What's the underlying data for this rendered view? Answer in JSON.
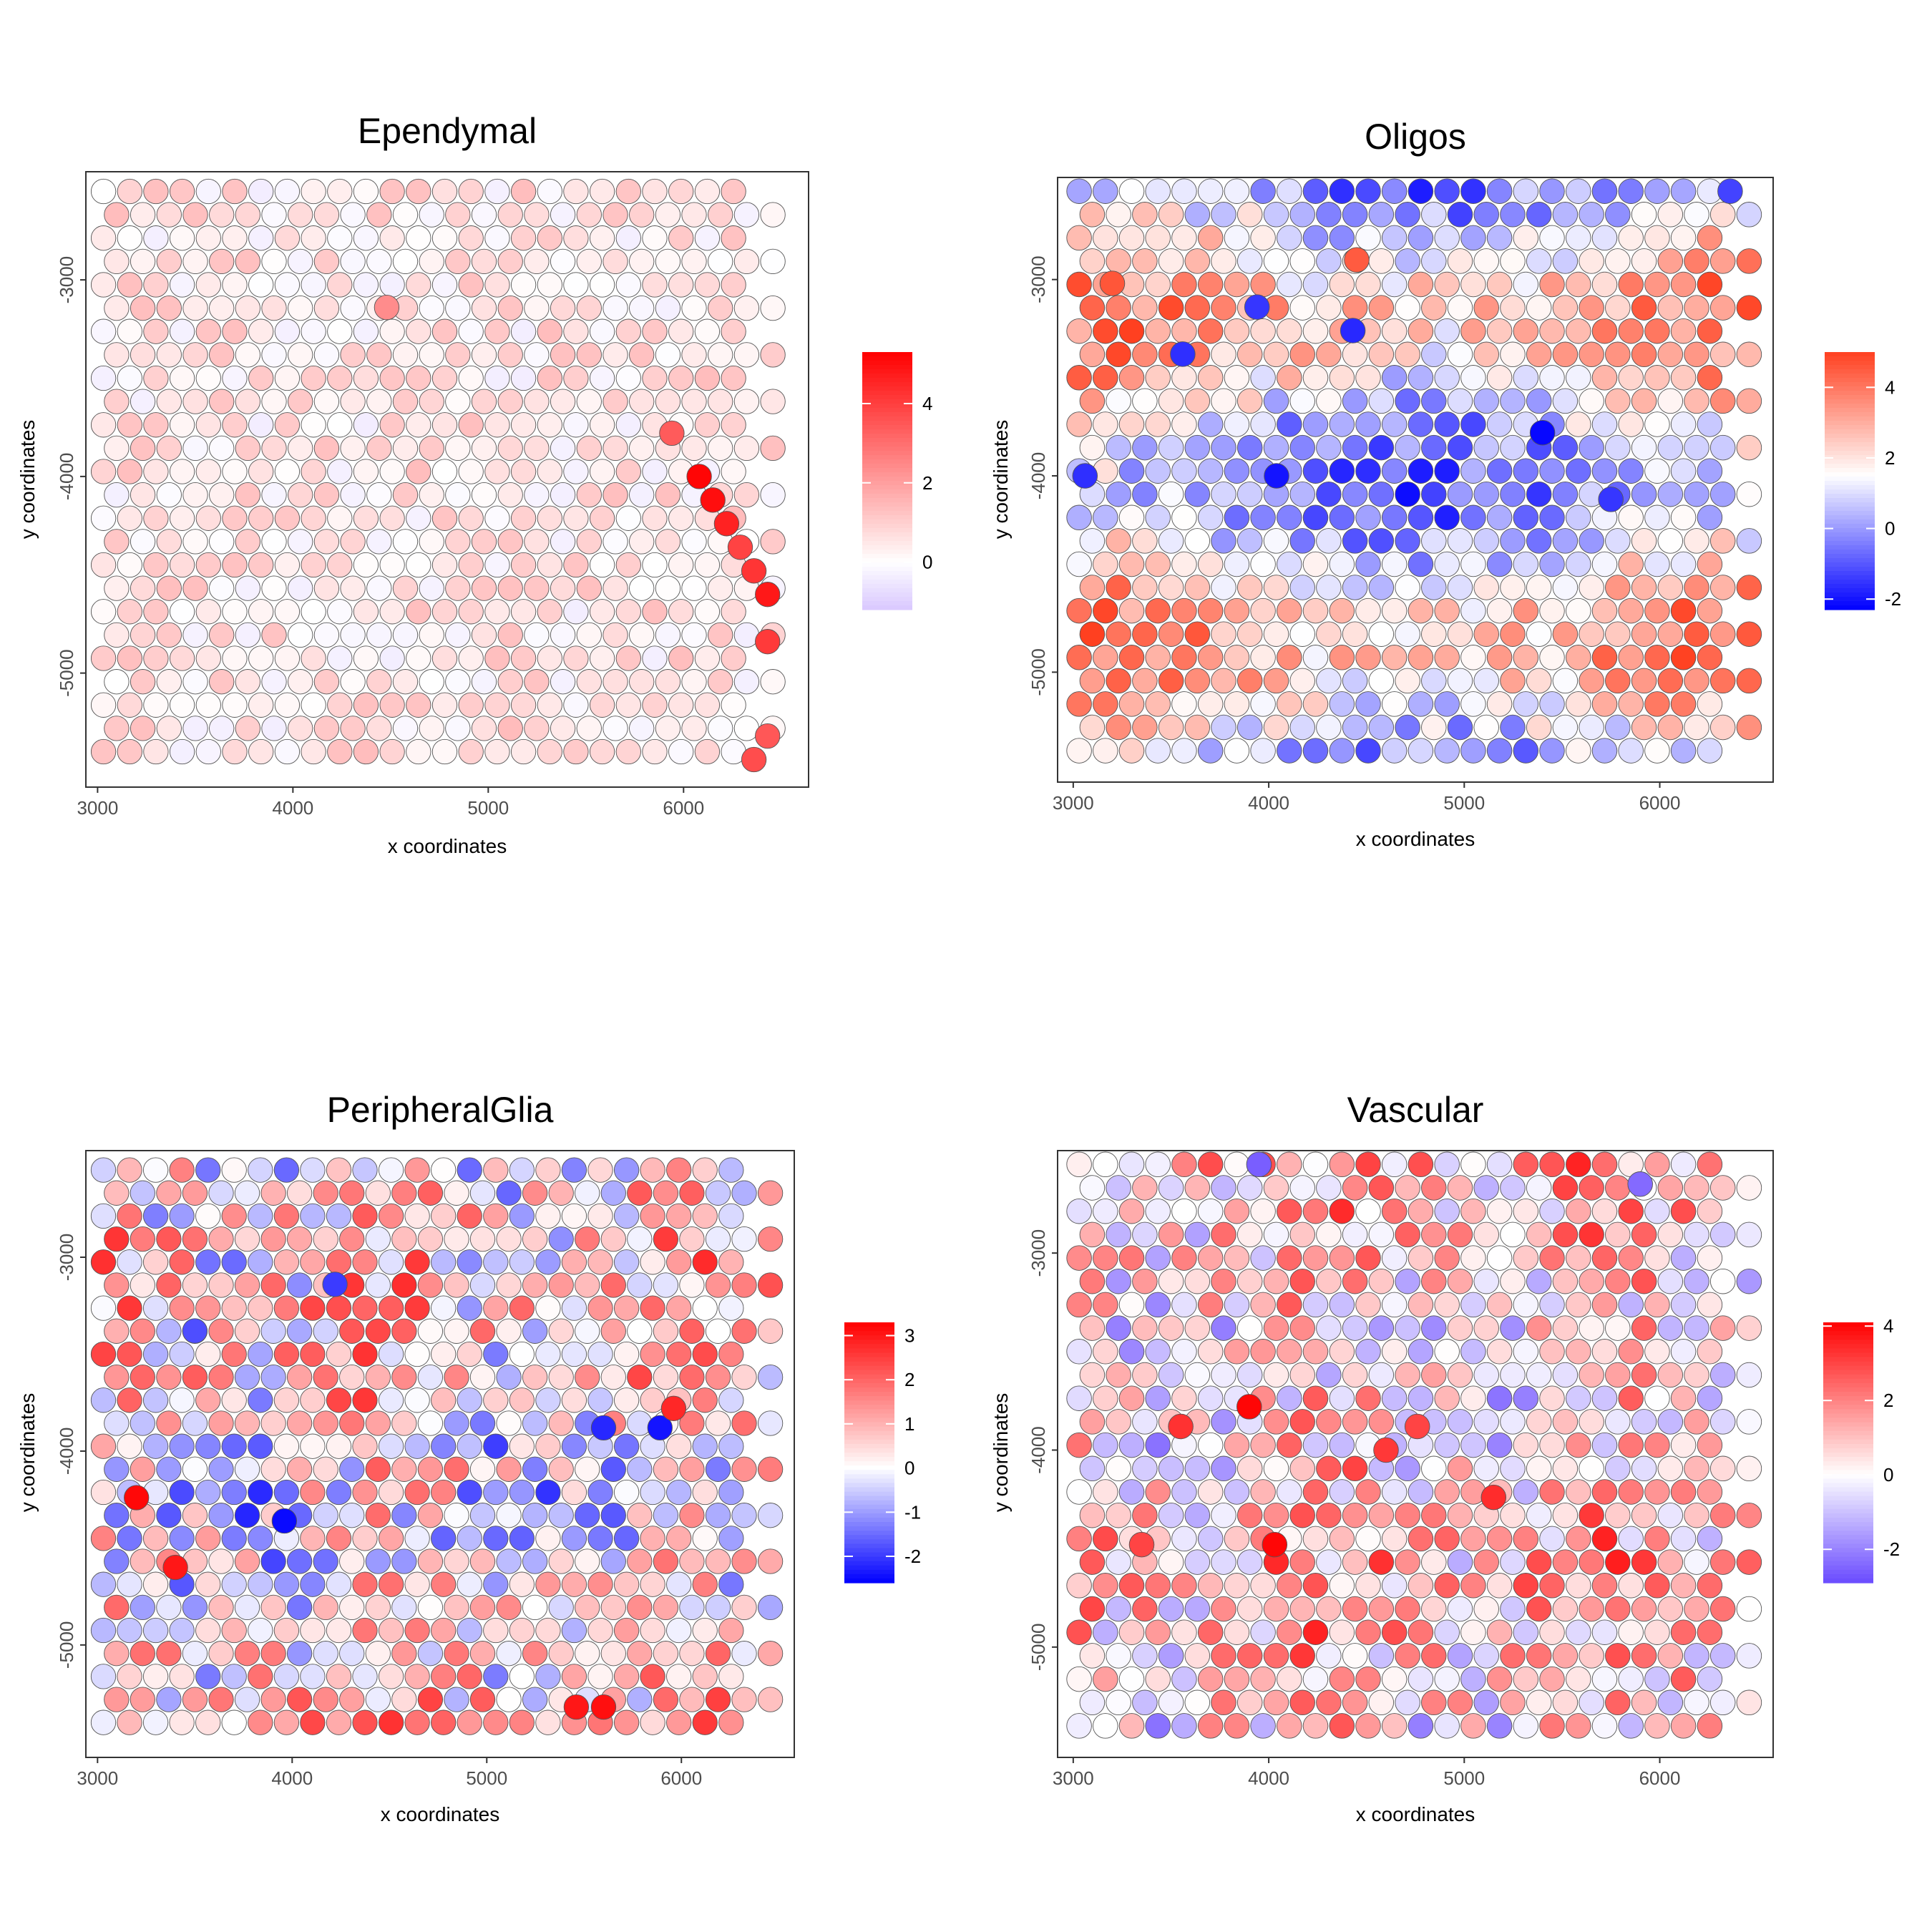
{
  "chart_data": [
    {
      "type": "scatter",
      "title": "Ependymal",
      "xlabel": "x coordinates",
      "ylabel": "y coordinates",
      "xlim": [
        2940,
        6640
      ],
      "ylim": [
        -5580,
        -2450
      ],
      "xticks": [
        3000,
        4000,
        5000,
        6000
      ],
      "yticks": [
        -3000,
        -4000,
        -5000
      ],
      "colorbar": {
        "min": -1.2,
        "max": 5.3,
        "ticks": [
          0,
          2,
          4
        ],
        "low_color": "#d9c8ff",
        "mid": 0,
        "mid_color": "#ffffff",
        "high_color": "#ff0000"
      },
      "grid": {
        "cols": 26,
        "rows": 25,
        "x0": 3030,
        "dx": 134.4,
        "y0": -2550,
        "dy": -118.75
      },
      "hotspots": [
        {
          "x": 5940,
          "y": -3780,
          "value": 3.4
        },
        {
          "x": 6080,
          "y": -4000,
          "value": 5.2
        },
        {
          "x": 6150,
          "y": -4120,
          "value": 5.0
        },
        {
          "x": 6220,
          "y": -4240,
          "value": 4.6
        },
        {
          "x": 6290,
          "y": -4360,
          "value": 3.9
        },
        {
          "x": 6360,
          "y": -4480,
          "value": 4.2
        },
        {
          "x": 6430,
          "y": -4600,
          "value": 4.8
        },
        {
          "x": 6430,
          "y": -4840,
          "value": 4.1
        },
        {
          "x": 6430,
          "y": -5320,
          "value": 3.5
        },
        {
          "x": 6360,
          "y": -5440,
          "value": 3.7
        },
        {
          "x": 4480,
          "y": -3140,
          "value": 2.4
        }
      ]
    },
    {
      "type": "scatter",
      "title": "Oligos",
      "xlabel": "x coordinates",
      "ylabel": "y coordinates",
      "xlim": [
        2920,
        6580
      ],
      "ylim": [
        -5560,
        -2480
      ],
      "xticks": [
        3000,
        4000,
        5000,
        6000
      ],
      "yticks": [
        -3000,
        -4000,
        -5000
      ],
      "colorbar": {
        "min": -2.3,
        "max": 5.0,
        "ticks": [
          -2,
          0,
          2,
          4
        ],
        "low_color": "#0000ff",
        "mid": 1.5,
        "mid_color": "#ffffff",
        "high_color": "#ff4020"
      },
      "grid": {
        "cols": 26,
        "rows": 25,
        "x0": 3030,
        "dx": 134.4,
        "y0": -2550,
        "dy": -118.75
      },
      "hotspots": [
        {
          "x": 5400,
          "y": -3780,
          "value": -2.2
        },
        {
          "x": 4040,
          "y": -4000,
          "value": -2.0
        },
        {
          "x": 3060,
          "y": -4000,
          "value": -1.6
        },
        {
          "x": 4430,
          "y": -3260,
          "value": -1.7
        },
        {
          "x": 3940,
          "y": -3140,
          "value": -1.5
        },
        {
          "x": 3560,
          "y": -3380,
          "value": -1.6
        },
        {
          "x": 5750,
          "y": -4120,
          "value": -1.5
        },
        {
          "x": 6360,
          "y": -2550,
          "value": -1.3
        },
        {
          "x": 3200,
          "y": -3020,
          "value": 4.6
        },
        {
          "x": 4450,
          "y": -2900,
          "value": 4.5
        }
      ]
    },
    {
      "type": "scatter",
      "title": "PeripheralGlia",
      "xlabel": "x coordinates",
      "ylabel": "y coordinates",
      "xlim": [
        2940,
        6580
      ],
      "ylim": [
        -5580,
        -2450
      ],
      "xticks": [
        3000,
        4000,
        5000,
        6000
      ],
      "yticks": [
        -3000,
        -4000,
        -5000
      ],
      "colorbar": {
        "min": -2.6,
        "max": 3.3,
        "ticks": [
          -2,
          -1,
          0,
          1,
          2,
          3
        ],
        "low_color": "#0000ff",
        "mid": 0,
        "mid_color": "#ffffff",
        "high_color": "#ff0000"
      },
      "grid": {
        "cols": 26,
        "rows": 25,
        "x0": 3030,
        "dx": 134.4,
        "y0": -2550,
        "dy": -118.75
      },
      "hotspots": [
        {
          "x": 3960,
          "y": -4360,
          "value": -2.5
        },
        {
          "x": 5600,
          "y": -3880,
          "value": -2.2
        },
        {
          "x": 5890,
          "y": -3880,
          "value": -2.4
        },
        {
          "x": 3200,
          "y": -4240,
          "value": 3.2
        },
        {
          "x": 3400,
          "y": -4600,
          "value": 3.0
        },
        {
          "x": 5460,
          "y": -5320,
          "value": 3.0
        },
        {
          "x": 5600,
          "y": -5320,
          "value": 3.1
        },
        {
          "x": 5960,
          "y": -3780,
          "value": 2.8
        },
        {
          "x": 4220,
          "y": -3140,
          "value": -2.0
        },
        {
          "x": 3500,
          "y": -3380,
          "value": -1.8
        }
      ]
    },
    {
      "type": "scatter",
      "title": "Vascular",
      "xlabel": "x coordinates",
      "ylabel": "y coordinates",
      "xlim": [
        2920,
        6580
      ],
      "ylim": [
        -5560,
        -2480
      ],
      "xticks": [
        3000,
        4000,
        5000,
        6000
      ],
      "yticks": [
        -3000,
        -4000,
        -5000
      ],
      "colorbar": {
        "min": -2.9,
        "max": 4.1,
        "ticks": [
          -2,
          0,
          2,
          4
        ],
        "low_color": "#6a4bff",
        "mid": 0,
        "mid_color": "#ffffff",
        "high_color": "#ff0000"
      },
      "grid": {
        "cols": 26,
        "rows": 25,
        "x0": 3030,
        "dx": 134.4,
        "y0": -2550,
        "dy": -118.75
      },
      "hotspots": [
        {
          "x": 3900,
          "y": -3780,
          "value": 4.0
        },
        {
          "x": 4030,
          "y": -4480,
          "value": 4.0
        },
        {
          "x": 3550,
          "y": -3880,
          "value": 3.3
        },
        {
          "x": 4600,
          "y": -4000,
          "value": 3.2
        },
        {
          "x": 4760,
          "y": -3880,
          "value": 3.0
        },
        {
          "x": 5150,
          "y": -4240,
          "value": 3.4
        },
        {
          "x": 3350,
          "y": -4480,
          "value": 3.0
        },
        {
          "x": 3950,
          "y": -2550,
          "value": -2.6
        },
        {
          "x": 5900,
          "y": -2650,
          "value": -2.4
        }
      ]
    }
  ]
}
